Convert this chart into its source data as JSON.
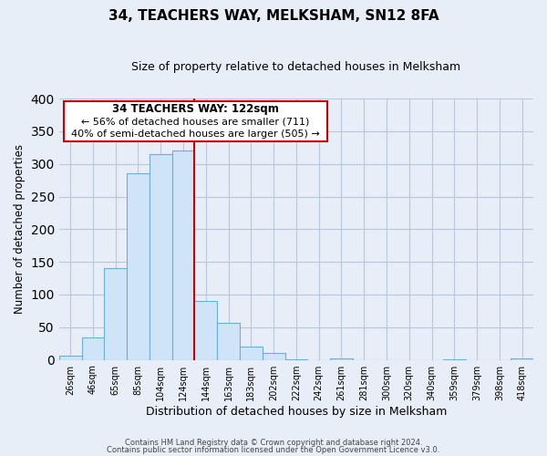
{
  "title": "34, TEACHERS WAY, MELKSHAM, SN12 8FA",
  "subtitle": "Size of property relative to detached houses in Melksham",
  "xlabel": "Distribution of detached houses by size in Melksham",
  "ylabel": "Number of detached properties",
  "bin_labels": [
    "26sqm",
    "46sqm",
    "65sqm",
    "85sqm",
    "104sqm",
    "124sqm",
    "144sqm",
    "163sqm",
    "183sqm",
    "202sqm",
    "222sqm",
    "242sqm",
    "261sqm",
    "281sqm",
    "300sqm",
    "320sqm",
    "340sqm",
    "359sqm",
    "379sqm",
    "398sqm",
    "418sqm"
  ],
  "bar_values": [
    7,
    35,
    140,
    285,
    315,
    320,
    90,
    57,
    20,
    10,
    1,
    0,
    2,
    0,
    0,
    0,
    0,
    1,
    0,
    0,
    2
  ],
  "bar_color": "#d0e4f7",
  "bar_edge_color": "#6baed6",
  "vline_x": 5.5,
  "vline_color": "#cc0000",
  "annotation_title": "34 TEACHERS WAY: 122sqm",
  "annotation_line1": "← 56% of detached houses are smaller (711)",
  "annotation_line2": "40% of semi-detached houses are larger (505) →",
  "annotation_box_color": "#ffffff",
  "annotation_box_edge": "#cc0000",
  "ylim": [
    0,
    400
  ],
  "yticks": [
    0,
    50,
    100,
    150,
    200,
    250,
    300,
    350,
    400
  ],
  "footer_line1": "Contains HM Land Registry data © Crown copyright and database right 2024.",
  "footer_line2": "Contains public sector information licensed under the Open Government Licence v3.0.",
  "bg_color": "#e8eef8",
  "plot_bg_color": "#e8eef8",
  "grid_color": "#b8c8d8"
}
